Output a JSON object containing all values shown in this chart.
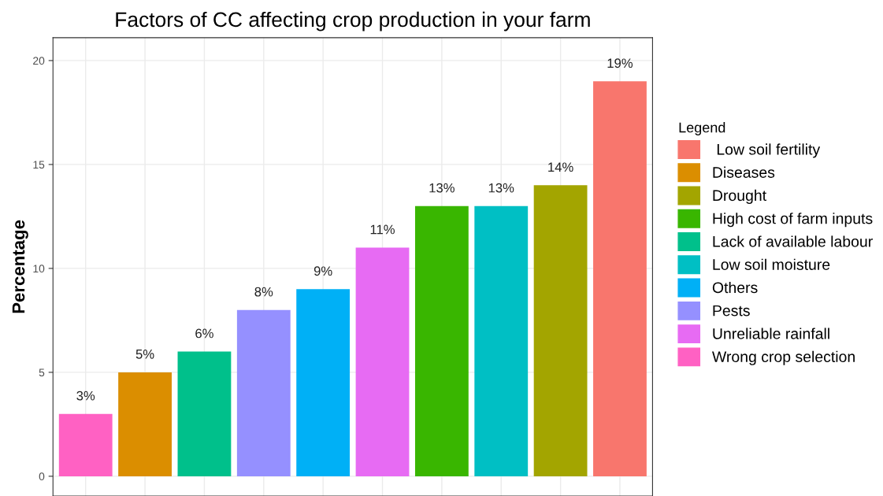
{
  "chart_data": {
    "type": "bar",
    "title": "Factors of CC affecting crop production in your farm",
    "ylabel": "Percentage",
    "legend_title": "Legend",
    "categories": [
      null,
      null,
      null,
      null,
      null,
      null,
      null,
      null,
      null,
      null
    ],
    "series": [
      {
        "name": " Low soil fertility",
        "color": "#f8766d",
        "values": [
          null,
          null,
          null,
          null,
          null,
          null,
          null,
          null,
          null,
          19
        ],
        "value_labels": [
          null,
          null,
          null,
          null,
          null,
          null,
          null,
          null,
          null,
          "19%"
        ]
      },
      {
        "name": "Diseases",
        "color": "#db8e00",
        "values": [
          null,
          5,
          null,
          null,
          null,
          null,
          null,
          null,
          null,
          null
        ],
        "value_labels": [
          null,
          "5%",
          null,
          null,
          null,
          null,
          null,
          null,
          null,
          null
        ]
      },
      {
        "name": "Drought",
        "color": "#a3a500",
        "values": [
          null,
          null,
          null,
          null,
          null,
          null,
          null,
          null,
          14,
          null
        ],
        "value_labels": [
          null,
          null,
          null,
          null,
          null,
          null,
          null,
          null,
          "14%",
          null
        ]
      },
      {
        "name": "High cost of farm inputs",
        "color": "#39b600",
        "values": [
          null,
          null,
          null,
          null,
          null,
          null,
          13,
          null,
          null,
          null
        ],
        "value_labels": [
          null,
          null,
          null,
          null,
          null,
          null,
          "13%",
          null,
          null,
          null
        ]
      },
      {
        "name": "Lack of available labour",
        "color": "#00c08b",
        "values": [
          null,
          null,
          6,
          null,
          null,
          null,
          null,
          null,
          null,
          null
        ],
        "value_labels": [
          null,
          null,
          "6%",
          null,
          null,
          null,
          null,
          null,
          null,
          null
        ]
      },
      {
        "name": "Low soil moisture",
        "color": "#00bfc4",
        "values": [
          null,
          null,
          null,
          null,
          null,
          null,
          null,
          13,
          null,
          null
        ],
        "value_labels": [
          null,
          null,
          null,
          null,
          null,
          null,
          null,
          "13%",
          null,
          null
        ]
      },
      {
        "name": "Others",
        "color": "#00b0f6",
        "values": [
          null,
          null,
          null,
          null,
          9,
          null,
          null,
          null,
          null,
          null
        ],
        "value_labels": [
          null,
          null,
          null,
          null,
          "9%",
          null,
          null,
          null,
          null,
          null
        ]
      },
      {
        "name": "Pests",
        "color": "#9590ff",
        "values": [
          null,
          null,
          null,
          8,
          null,
          null,
          null,
          null,
          null,
          null
        ],
        "value_labels": [
          null,
          null,
          null,
          "8%",
          null,
          null,
          null,
          null,
          null,
          null
        ]
      },
      {
        "name": "Unreliable rainfall",
        "color": "#e76bf3",
        "values": [
          null,
          null,
          null,
          null,
          null,
          11,
          null,
          null,
          null,
          null
        ],
        "value_labels": [
          null,
          null,
          null,
          null,
          null,
          "11%",
          null,
          null,
          null,
          null
        ]
      },
      {
        "name": "Wrong crop selection",
        "color": "#ff61c3",
        "values": [
          3,
          null,
          null,
          null,
          null,
          null,
          null,
          null,
          null,
          null
        ],
        "value_labels": [
          "3%",
          null,
          null,
          null,
          null,
          null,
          null,
          null,
          null,
          null
        ]
      }
    ],
    "ylim": [
      -0.95,
      21.1
    ],
    "yticks": [
      0,
      5,
      10,
      15,
      20
    ],
    "grid": true,
    "legend": "right",
    "tick_labels": "y"
  }
}
